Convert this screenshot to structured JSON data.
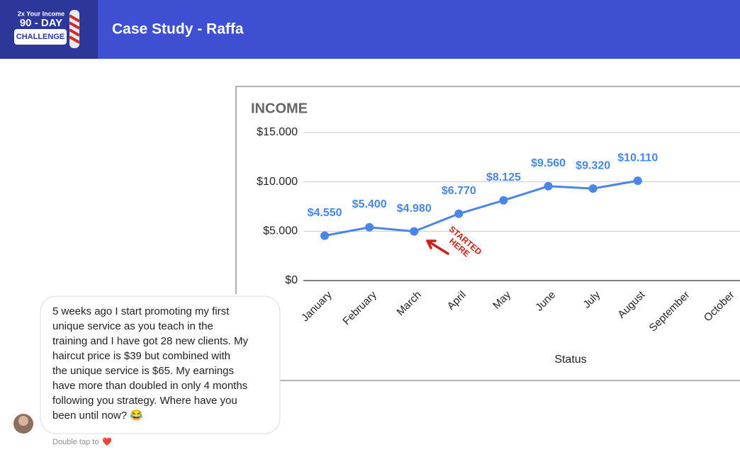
{
  "header": {
    "logo": {
      "line1": "2x Your Income",
      "line2": "90 - DAY",
      "line3": "CHALLENGE"
    },
    "title": "Case Study - Raffa"
  },
  "chart_data": {
    "type": "line",
    "title": "INCOME",
    "categories": [
      "January",
      "February",
      "March",
      "April",
      "May",
      "June",
      "July",
      "August",
      "September",
      "October"
    ],
    "values": [
      4550,
      5400,
      4980,
      6770,
      8125,
      9560,
      9320,
      10110,
      null,
      null
    ],
    "value_labels": [
      "$4.550",
      "$5.400",
      "$4.980",
      "$6.770",
      "$8.125",
      "$9.560",
      "$9.320",
      "$10.110",
      null,
      null
    ],
    "color": "#4a86e8",
    "ylim": [
      0,
      15000
    ],
    "yticks": [
      {
        "value": 0,
        "label": "$0"
      },
      {
        "value": 5000,
        "label": "$5.000"
      },
      {
        "value": 10000,
        "label": "$10.000"
      },
      {
        "value": 15000,
        "label": "$15.000"
      }
    ],
    "grid": true,
    "x_label": "Status",
    "annotation": {
      "line1": "STARTED",
      "line2": "HERE"
    }
  },
  "message": {
    "lines": [
      "5 weeks ago I start promoting my first",
      "unique service as you teach in the",
      "training and I have got 28 new clients. My",
      "haircut price is $39 but combined with",
      "the unique service is $65. My earnings",
      "have more than doubled in only 4 months",
      "following you strategy. Where have you",
      "been until now? 😂"
    ],
    "footer": "Double tap to",
    "footer_icon": "❤️"
  }
}
